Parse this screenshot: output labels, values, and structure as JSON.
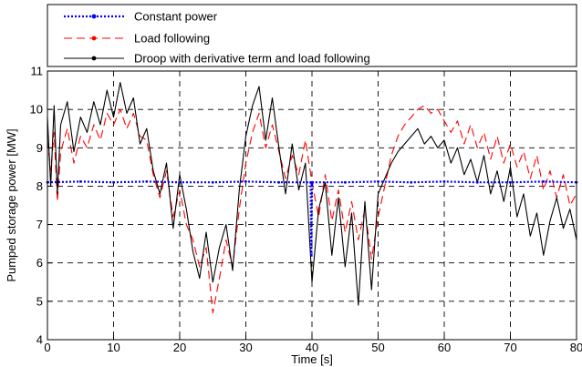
{
  "chart_data": {
    "type": "line",
    "title": "",
    "xlabel": "Time [s]",
    "ylabel": "Pumped storage power [MW]",
    "xlim": [
      0,
      80
    ],
    "ylim": [
      4,
      11
    ],
    "xticks": [
      0,
      10,
      20,
      30,
      40,
      50,
      60,
      70,
      80
    ],
    "yticks": [
      4,
      5,
      6,
      7,
      8,
      9,
      10,
      11
    ],
    "grid": true,
    "legend_position": "top, above plot area",
    "series": [
      {
        "name": "Constant power",
        "color": "#0000ff",
        "style": "dotted-marker",
        "x": [
          0,
          5,
          10,
          15,
          20,
          25,
          30,
          35,
          39.8,
          39.9,
          40.0,
          40.1,
          45,
          50,
          55,
          60,
          65,
          70,
          75,
          80
        ],
        "y": [
          8.1,
          8.12,
          8.1,
          8.12,
          8.1,
          8.1,
          8.12,
          8.1,
          8.1,
          6.2,
          8.05,
          8.1,
          8.1,
          8.12,
          8.1,
          8.12,
          8.1,
          8.1,
          8.12,
          8.1
        ]
      },
      {
        "name": "Load following",
        "color": "#ff0000",
        "style": "dashed-marker",
        "x": [
          0,
          0.5,
          1,
          1.5,
          2,
          3,
          4,
          5,
          6,
          7,
          8,
          9,
          10,
          11,
          12,
          13,
          14,
          15,
          16,
          17,
          18,
          19,
          20,
          21,
          22,
          23,
          24,
          25,
          26,
          27,
          28,
          29,
          30,
          31,
          32,
          33,
          34,
          35,
          36,
          37,
          38,
          39,
          40,
          41,
          42,
          43,
          44,
          45,
          46,
          47,
          48,
          49,
          50,
          51,
          52,
          53,
          54,
          55,
          56,
          57,
          58,
          59,
          60,
          61,
          62,
          63,
          64,
          65,
          66,
          67,
          68,
          69,
          70,
          71,
          72,
          73,
          74,
          75,
          76,
          77,
          78,
          79,
          80
        ],
        "y": [
          9.2,
          8.4,
          9.4,
          7.6,
          8.9,
          9.5,
          8.6,
          9.3,
          9.0,
          9.6,
          9.2,
          9.9,
          9.6,
          10.0,
          9.5,
          9.9,
          9.3,
          9.2,
          8.3,
          7.7,
          8.4,
          7.2,
          7.9,
          7.0,
          6.6,
          5.9,
          6.4,
          4.7,
          5.6,
          6.6,
          5.9,
          7.4,
          8.6,
          9.4,
          9.9,
          9.0,
          9.6,
          8.9,
          8.2,
          8.8,
          8.3,
          9.2,
          8.1,
          7.2,
          8.3,
          7.1,
          7.9,
          6.8,
          7.6,
          6.6,
          7.4,
          6.1,
          7.2,
          8.0,
          8.8,
          9.3,
          9.6,
          9.8,
          10.0,
          10.1,
          9.9,
          10.0,
          9.7,
          9.4,
          9.7,
          9.1,
          9.6,
          9.0,
          9.4,
          8.7,
          9.3,
          8.6,
          9.1,
          8.5,
          8.9,
          8.2,
          8.8,
          7.9,
          8.4,
          7.7,
          8.3,
          7.5,
          7.8
        ]
      },
      {
        "name": "Droop with derivative term and load following",
        "color": "#000000",
        "style": "solid-marker",
        "x": [
          0,
          0.5,
          1,
          1.5,
          2,
          3,
          4,
          5,
          6,
          7,
          8,
          9,
          10,
          11,
          12,
          13,
          14,
          15,
          16,
          17,
          18,
          19,
          20,
          21,
          22,
          23,
          24,
          25,
          26,
          27,
          28,
          29,
          30,
          31,
          32,
          33,
          34,
          35,
          36,
          37,
          38,
          39,
          40,
          41,
          42,
          43,
          44,
          45,
          46,
          47,
          48,
          49,
          50,
          51,
          52,
          53,
          54,
          55,
          56,
          57,
          58,
          59,
          60,
          61,
          62,
          63,
          64,
          65,
          66,
          67,
          68,
          69,
          70,
          71,
          72,
          73,
          74,
          75,
          76,
          77,
          78,
          79,
          80
        ],
        "y": [
          9.8,
          8.0,
          10.1,
          7.8,
          9.6,
          10.2,
          8.9,
          9.8,
          9.4,
          10.2,
          9.6,
          10.5,
          9.8,
          10.7,
          9.9,
          10.3,
          9.1,
          9.5,
          8.4,
          7.8,
          8.6,
          6.9,
          8.3,
          7.4,
          6.3,
          5.6,
          6.8,
          5.5,
          6.4,
          7.0,
          5.8,
          7.9,
          9.3,
          10.1,
          10.6,
          9.2,
          10.3,
          9.0,
          7.8,
          9.1,
          7.9,
          8.6,
          5.5,
          7.4,
          8.1,
          6.2,
          7.7,
          5.9,
          7.3,
          4.9,
          7.6,
          5.3,
          7.8,
          8.2,
          8.6,
          8.9,
          9.1,
          9.3,
          9.5,
          9.1,
          9.3,
          9.0,
          9.2,
          8.6,
          9.0,
          8.3,
          8.7,
          8.1,
          8.8,
          7.8,
          8.4,
          7.6,
          8.5,
          7.2,
          7.8,
          6.7,
          7.3,
          6.2,
          7.1,
          7.7,
          6.9,
          7.4,
          6.6
        ]
      }
    ]
  }
}
